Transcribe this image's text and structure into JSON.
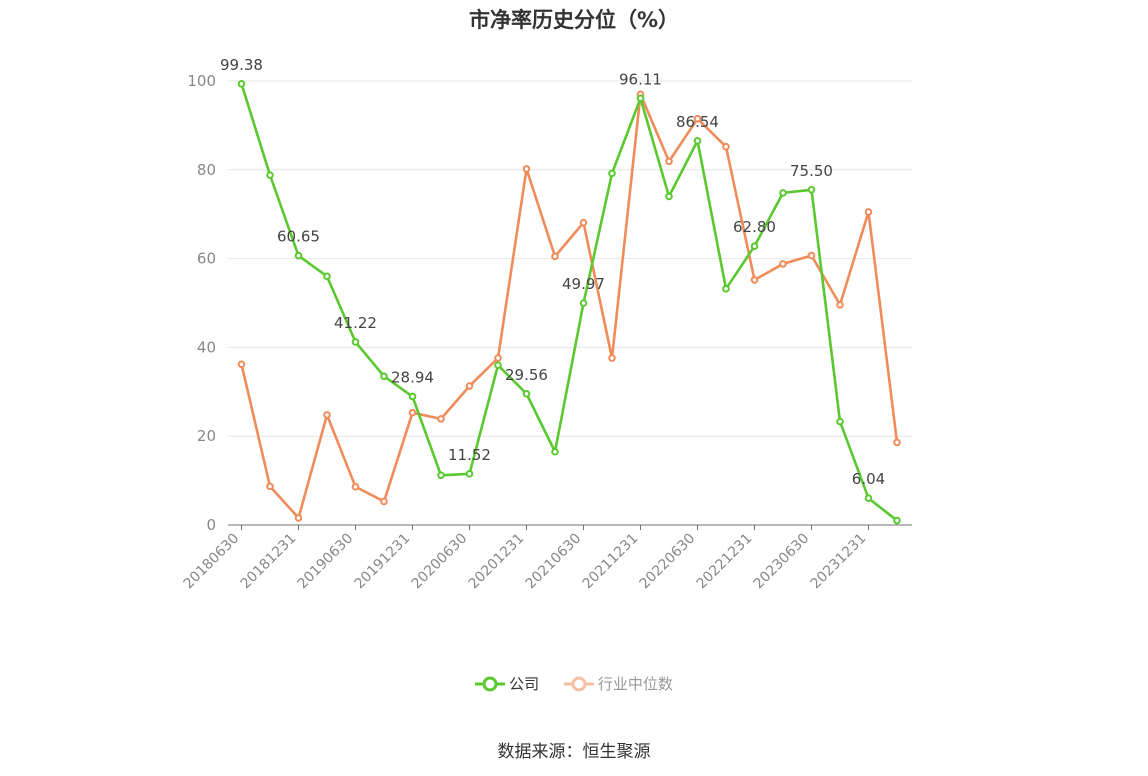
{
  "chart_data": {
    "type": "line",
    "title": "市净率历史分位（%）",
    "xlabel": "",
    "ylabel": "",
    "ylim": [
      0,
      100
    ],
    "yticks": [
      0,
      20,
      40,
      60,
      80,
      100
    ],
    "x": [
      "20180630",
      "20180930",
      "20181231",
      "20190331",
      "20190630",
      "20190930",
      "20191231",
      "20200331",
      "20200630",
      "20200930",
      "20201231",
      "20210331",
      "20210630",
      "20210930",
      "20211231",
      "20220331",
      "20220630",
      "20220930",
      "20221231",
      "20230331",
      "20230630",
      "20230930",
      "20231231",
      "20240331"
    ],
    "xtick_labels": [
      "20180630",
      "20181231",
      "20190630",
      "20191231",
      "20200630",
      "20201231",
      "20210630",
      "20211231",
      "20220630",
      "20221231",
      "20230630",
      "20231231"
    ],
    "series": [
      {
        "name": "公司",
        "color": "#5ac82f",
        "values": [
          99.38,
          78.8,
          60.65,
          56.0,
          41.22,
          33.5,
          28.94,
          11.2,
          11.52,
          36.0,
          29.56,
          16.5,
          49.97,
          79.2,
          96.11,
          74.0,
          86.54,
          53.2,
          62.8,
          74.8,
          75.5,
          23.3,
          6.04,
          1.0
        ],
        "labels": {
          "0": "99.38",
          "2": "60.65",
          "4": "41.22",
          "6": "28.94",
          "8": "11.52",
          "10": "29.56",
          "12": "49.97",
          "14": "96.11",
          "16": "86.54",
          "18": "62.80",
          "20": "75.50",
          "22": "6.04"
        }
      },
      {
        "name": "行业中位数",
        "color": "#f08c5a",
        "values": [
          36.2,
          8.7,
          1.6,
          24.8,
          8.6,
          5.3,
          25.3,
          23.9,
          31.3,
          37.6,
          80.2,
          60.5,
          68.1,
          37.6,
          97.0,
          81.9,
          91.5,
          85.2,
          55.2,
          58.8,
          60.7,
          49.6,
          70.5,
          18.6
        ]
      }
    ],
    "grid": true,
    "legend_position": "bottom-center"
  },
  "source": "数据来源：恒生聚源"
}
